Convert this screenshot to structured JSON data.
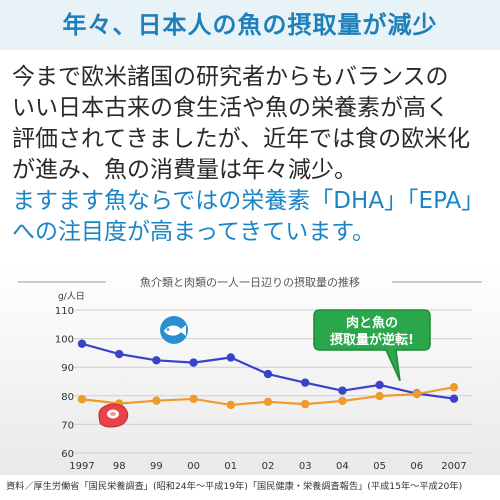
{
  "header": {
    "title": "年々、日本人の魚の摂取量が減少"
  },
  "body": {
    "lines": [
      "今まで欧米諸国の研究者からもバランスの",
      "いい日本古来の食生活や魚の栄養素が高く",
      "評価されてきましたが、近年では食の欧米化",
      "が進み、魚の消費量は年々減少。"
    ],
    "highlight_lines": [
      "ますます魚ならではの栄養素「DHA」「EPA」",
      "への注目度が高まってきています。"
    ]
  },
  "chart_data": {
    "type": "line",
    "title": "魚介類と肉類の一人一日辺りの摂取量の推移",
    "ylabel": "g/人日",
    "ylim": [
      60,
      110
    ],
    "yticks": [
      60,
      70,
      80,
      90,
      100,
      110
    ],
    "categories": [
      "1997",
      "98",
      "99",
      "00",
      "01",
      "02",
      "03",
      "04",
      "05",
      "06",
      "2007"
    ],
    "series": [
      {
        "key": "fish",
        "color": "#3a42c8",
        "icon": "fish-icon",
        "values": [
          98.2,
          94.6,
          92.4,
          91.6,
          93.4,
          87.6,
          84.6,
          81.8,
          83.8,
          80.8,
          79.0
        ]
      },
      {
        "key": "meat",
        "color": "#ef9a2a",
        "icon": "meat-icon",
        "values": [
          78.8,
          77.3,
          78.3,
          78.9,
          76.8,
          77.9,
          77.1,
          78.2,
          79.9,
          80.6,
          83.0
        ]
      }
    ],
    "callout": [
      "肉と魚の",
      "摂取量が逆転!"
    ],
    "callout_color": "#2aa74a",
    "grid": true
  },
  "footer": {
    "source": "資料／厚生労働省「国民栄養調査」(昭和24年〜平成19年)「国民健康・栄養調査報告」(平成15年〜平成20年)"
  }
}
